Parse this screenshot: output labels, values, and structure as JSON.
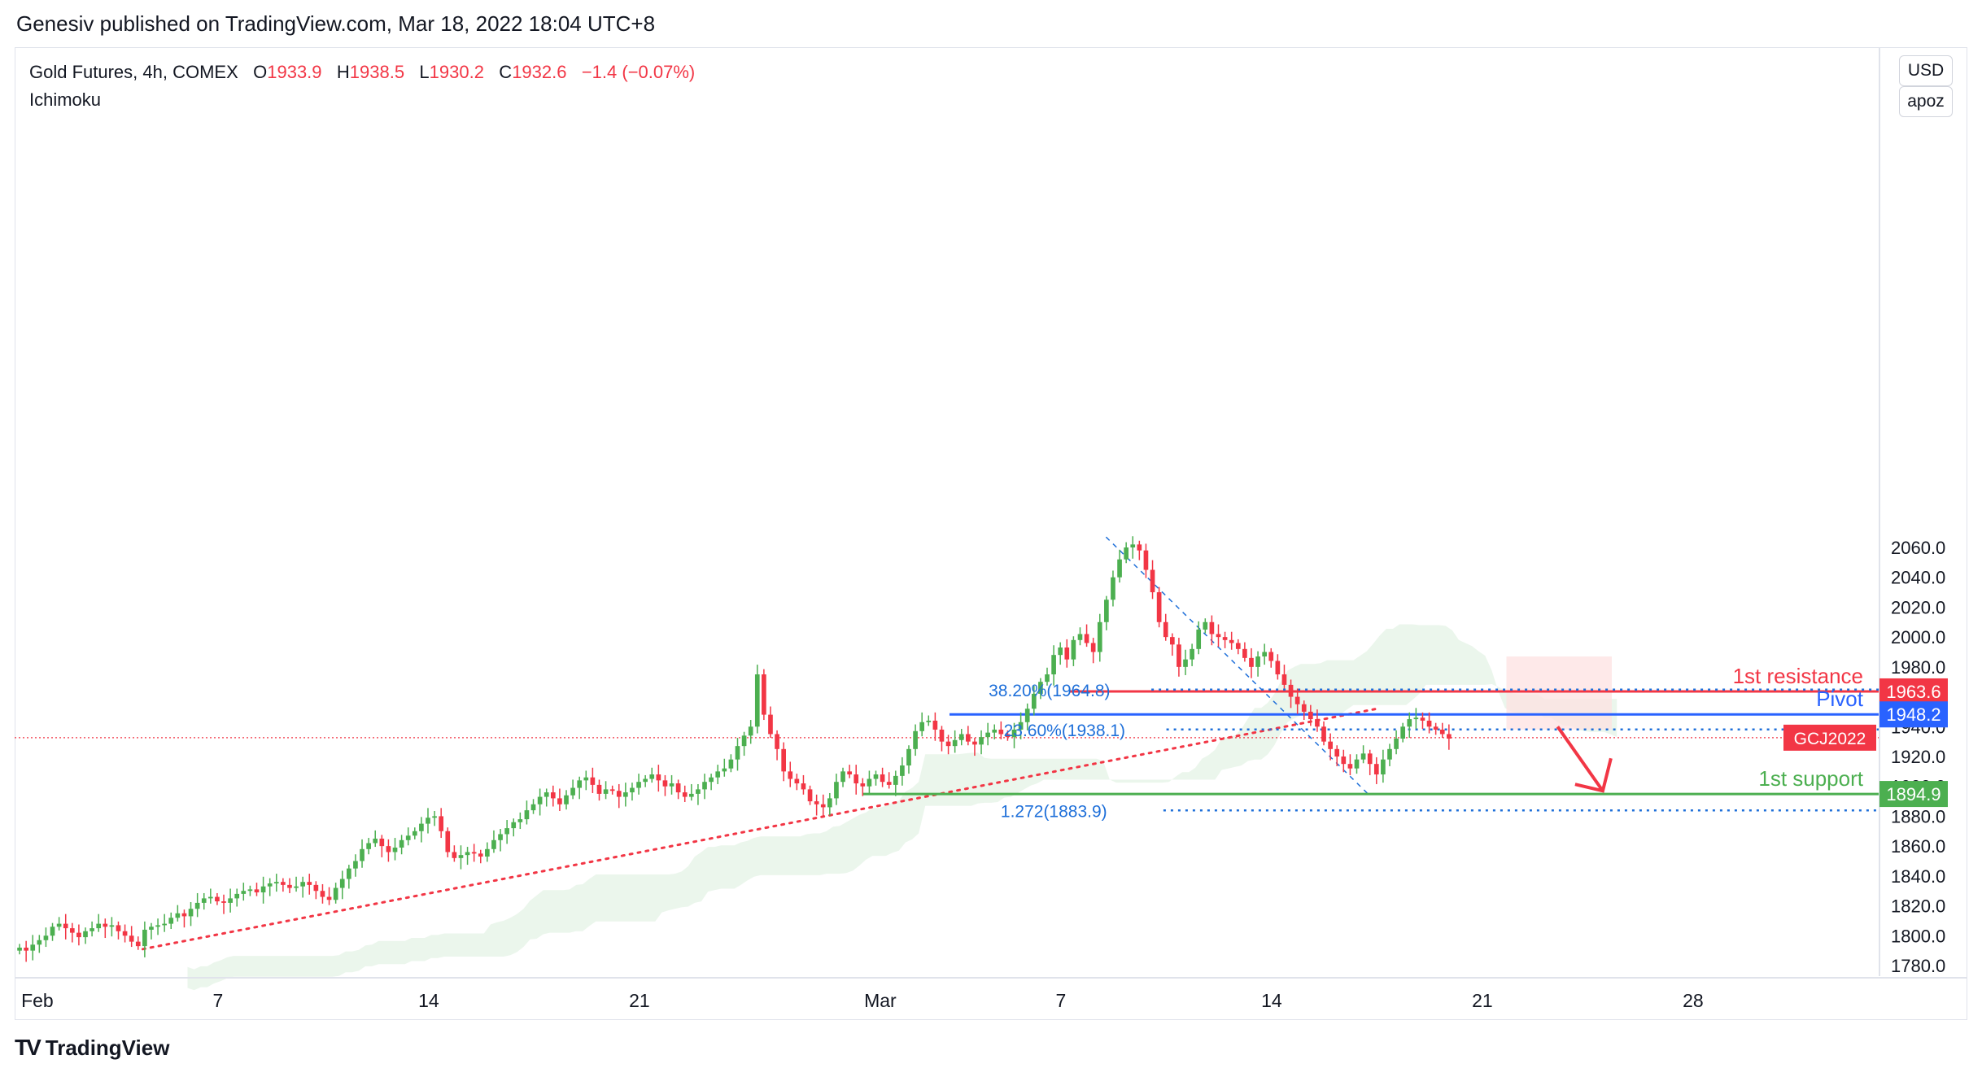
{
  "header": {
    "publisher_line": "Genesiv published on TradingView.com, Mar 18, 2022 18:04 UTC+8"
  },
  "legend": {
    "symbol": "Gold Futures, 4h, COMEX",
    "open_label": "O",
    "open": "1933.9",
    "high_label": "H",
    "high": "1938.5",
    "low_label": "L",
    "low": "1930.2",
    "close_label": "C",
    "close": "1932.6",
    "change": "−1.4 (−0.07%)",
    "indicator": "Ichimoku"
  },
  "price_scale": {
    "currency_button": "USD",
    "scale_button": "apoz"
  },
  "footer": {
    "brand": "TradingView"
  },
  "colors": {
    "up": "#4caf50",
    "down": "#f23645",
    "resistance": "#f23645",
    "pivot": "#2962ff",
    "support": "#4caf50",
    "fib": "#1e6fd9"
  },
  "chart_data": {
    "type": "candlestick",
    "instrument": "GCJ2022",
    "timeframe": "4h",
    "ylim": [
      1775,
      2082
    ],
    "y_ticks": [
      1780,
      1800,
      1820,
      1840,
      1860,
      1880,
      1900,
      1920,
      1940,
      1960,
      1980,
      2000,
      2020,
      2040,
      2060
    ],
    "y_tick_labels": [
      "1780.0",
      "1800.0",
      "1820.0",
      "1840.0",
      "1860.0",
      "1880.0",
      "1900.0",
      "1920.0",
      "1940.0",
      "1960.0",
      "1980.0",
      "2000.0",
      "2020.0",
      "2040.0",
      "2060.0"
    ],
    "x_ticks": [
      {
        "day": 1,
        "label": "Feb"
      },
      {
        "day": 7,
        "label": "7"
      },
      {
        "day": 14,
        "label": "14"
      },
      {
        "day": 21,
        "label": "21"
      },
      {
        "day": 29,
        "label": "Mar"
      },
      {
        "day": 35,
        "label": "7"
      },
      {
        "day": 42,
        "label": "14"
      },
      {
        "day": 49,
        "label": "21"
      },
      {
        "day": 56,
        "label": "28"
      }
    ],
    "x_range_days": [
      0,
      62
    ],
    "candles_close": [
      1792,
      1790,
      1794,
      1797,
      1800,
      1806,
      1808,
      1805,
      1802,
      1799,
      1803,
      1805,
      1808,
      1806,
      1807,
      1803,
      1800,
      1796,
      1793,
      1804,
      1806,
      1807,
      1808,
      1812,
      1815,
      1813,
      1818,
      1822,
      1825,
      1826,
      1823,
      1822,
      1825,
      1828,
      1830,
      1831,
      1829,
      1833,
      1835,
      1836,
      1834,
      1832,
      1833,
      1836,
      1834,
      1830,
      1826,
      1824,
      1832,
      1838,
      1845,
      1850,
      1858,
      1862,
      1865,
      1860,
      1856,
      1859,
      1864,
      1867,
      1870,
      1875,
      1879,
      1880,
      1870,
      1856,
      1852,
      1854,
      1856,
      1855,
      1853,
      1858,
      1864,
      1868,
      1872,
      1876,
      1878,
      1884,
      1888,
      1893,
      1896,
      1892,
      1888,
      1894,
      1899,
      1904,
      1906,
      1901,
      1895,
      1898,
      1897,
      1893,
      1896,
      1899,
      1903,
      1905,
      1908,
      1904,
      1900,
      1902,
      1896,
      1893,
      1895,
      1898,
      1903,
      1906,
      1910,
      1912,
      1918,
      1927,
      1934,
      1940,
      1975,
      1948,
      1935,
      1925,
      1910,
      1905,
      1902,
      1898,
      1890,
      1888,
      1886,
      1892,
      1903,
      1910,
      1908,
      1902,
      1900,
      1905,
      1908,
      1903,
      1901,
      1907,
      1914,
      1925,
      1937,
      1943,
      1944,
      1938,
      1930,
      1927,
      1931,
      1935,
      1930,
      1928,
      1933,
      1936,
      1938,
      1935,
      1933,
      1938,
      1943,
      1952,
      1962,
      1970,
      1975,
      1988,
      1993,
      1985,
      1998,
      2002,
      1996,
      1990,
      2010,
      2025,
      2040,
      2052,
      2060,
      2062,
      2058,
      2045,
      2030,
      2010,
      2000,
      1995,
      1980,
      1985,
      1992,
      2005,
      2010,
      2002,
      2000,
      1998,
      1996,
      1992,
      1986,
      1980,
      1987,
      1990,
      1984,
      1975,
      1968,
      1960,
      1955,
      1950,
      1945,
      1940,
      1930,
      1925,
      1920,
      1915,
      1912,
      1918,
      1922,
      1915,
      1908,
      1918,
      1925,
      1932,
      1940,
      1945,
      1946,
      1944,
      1940,
      1938,
      1935,
      1932
    ],
    "horizontal_levels": [
      {
        "name": "1st resistance",
        "value": 1963.6,
        "label": "1963.6"
      },
      {
        "name": "Pivot",
        "value": 1948.2,
        "label": "1948.2"
      },
      {
        "name": "1st support",
        "value": 1894.9,
        "label": "1894.9"
      }
    ],
    "fib_levels": [
      {
        "label": "38.20%(1964.8)",
        "value": 1964.8
      },
      {
        "label": "23.60%(1938.1)",
        "value": 1938.1
      },
      {
        "label": "1.272(1883.9)",
        "value": 1883.9
      }
    ],
    "current_price": {
      "value": 1932.6,
      "label": "GCJ2022"
    },
    "trendline": {
      "from": {
        "day": 4.5,
        "value": 1791
      },
      "to": {
        "day": 45.5,
        "value": 1952
      }
    },
    "projection_arrow": {
      "from": {
        "day": 51.5,
        "value": 1940
      },
      "to": {
        "day": 53,
        "value": 1897
      }
    }
  }
}
